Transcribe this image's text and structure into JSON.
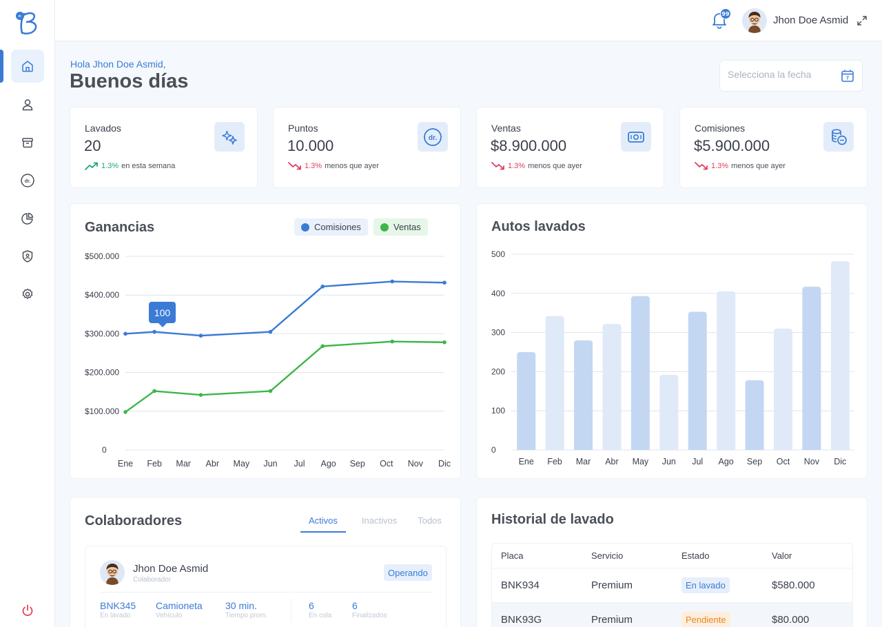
{
  "colors": {
    "accent": "#3a7bd5",
    "green": "#3cb64a",
    "up": "#1aa67a",
    "down": "#e03c5c",
    "bar_dark": "#c3d7f3",
    "bar_light": "#dfe9f8"
  },
  "sidebar": {
    "logo_icon": "brand-b-logo-icon",
    "items": [
      {
        "icon": "home-icon",
        "active": true
      },
      {
        "icon": "user-icon"
      },
      {
        "icon": "box-icon"
      },
      {
        "icon": "dr-points-icon",
        "text": "dr."
      },
      {
        "icon": "pie-chart-icon"
      },
      {
        "icon": "shield-icon"
      },
      {
        "icon": "gear-icon"
      }
    ],
    "logout_icon": "power-icon"
  },
  "header": {
    "notifications_count": "99",
    "user_name": "Jhon Doe Asmid"
  },
  "greeting": {
    "hello": "Hola Jhon Doe Asmid,",
    "title": "Buenos días",
    "date_placeholder": "Selecciona la fecha",
    "calendar_day": "7"
  },
  "stats": [
    {
      "label": "Lavados",
      "value": "20",
      "pct": "1.3%",
      "trend_text": "en esta semana",
      "direction": "up",
      "icon": "sparkle-icon"
    },
    {
      "label": "Puntos",
      "value": "10.000",
      "pct": "1.3%",
      "trend_text": "menos que ayer",
      "direction": "down",
      "icon": "dr-coin-icon",
      "icon_text": "dr."
    },
    {
      "label": "Ventas",
      "value": "$8.900.000",
      "pct": "1.3%",
      "trend_text": "menos que ayer",
      "direction": "down",
      "icon": "cash-icon"
    },
    {
      "label": "Comisiones",
      "value": "$5.900.000",
      "pct": "1.3%",
      "trend_text": "menos que ayer",
      "direction": "down",
      "icon": "coins-icon"
    }
  ],
  "ganancias": {
    "title": "Ganancias",
    "legend": [
      "Comisiones",
      "Ventas"
    ],
    "tooltip": "100"
  },
  "autos": {
    "title": "Autos lavados"
  },
  "chart_data": [
    {
      "type": "line",
      "title": "Ganancias",
      "categories": [
        "Ene",
        "Feb",
        "Mar",
        "Abr",
        "May",
        "Jun",
        "Jul",
        "Ago",
        "Sep",
        "Oct",
        "Nov",
        "Dic"
      ],
      "y_ticks": [
        "0",
        "$100.000",
        "$200.000",
        "$300.000",
        "$400.000",
        "$500.000"
      ],
      "ylim": [
        0,
        500000
      ],
      "grid": true,
      "legend_position": "top-right",
      "series": [
        {
          "name": "Comisiones",
          "color": "#3a7bd5",
          "points": [
            [
              0,
              300000
            ],
            [
              1,
              305000
            ],
            [
              2.6,
              295000
            ],
            [
              5,
              305000
            ],
            [
              6.8,
              422000
            ],
            [
              9.2,
              435000
            ],
            [
              11,
              432000
            ]
          ]
        },
        {
          "name": "Ventas",
          "color": "#3cb64a",
          "points": [
            [
              0,
              98000
            ],
            [
              1,
              152000
            ],
            [
              2.6,
              142000
            ],
            [
              5,
              152000
            ],
            [
              6.8,
              268000
            ],
            [
              9.2,
              280000
            ],
            [
              11,
              278000
            ]
          ]
        }
      ]
    },
    {
      "type": "bar",
      "title": "Autos lavados",
      "categories": [
        "Ene",
        "Feb",
        "Mar",
        "Abr",
        "May",
        "Jun",
        "Jul",
        "Ago",
        "Sep",
        "Oct",
        "Nov",
        "Dic"
      ],
      "values": [
        250,
        342,
        280,
        322,
        393,
        192,
        353,
        405,
        178,
        310,
        417,
        482
      ],
      "y_ticks": [
        "0",
        "100",
        "200",
        "300",
        "400",
        "500"
      ],
      "ylim": [
        0,
        500
      ],
      "grid": true
    }
  ],
  "colaboradores": {
    "title": "Colaboradores",
    "tabs": [
      "Activos",
      "Inactivos",
      "Todos"
    ],
    "active_tab": "Activos",
    "person": {
      "name": "Jhon Doe Asmid",
      "role": "Colaborador",
      "status": "Operando",
      "metrics": [
        {
          "value": "BNK345",
          "label": "En lavado"
        },
        {
          "value": "Camioneta",
          "label": "Vehículo"
        },
        {
          "value": "30 min.",
          "label": "Tiempo prom."
        },
        {
          "value": "6",
          "label": "En cola"
        },
        {
          "value": "6",
          "label": "Finalizados"
        }
      ]
    }
  },
  "historial": {
    "title": "Historial de lavado",
    "columns": [
      "Placa",
      "Servicio",
      "Estado",
      "Valor"
    ],
    "rows": [
      {
        "placa": "BNK934",
        "servicio": "Premium",
        "estado": "En lavado",
        "estado_color": "blue",
        "valor": "$580.000"
      },
      {
        "placa": "BNK93G",
        "servicio": "Premium",
        "estado": "Pendiente",
        "estado_color": "orange",
        "valor": "$80.000"
      }
    ]
  }
}
